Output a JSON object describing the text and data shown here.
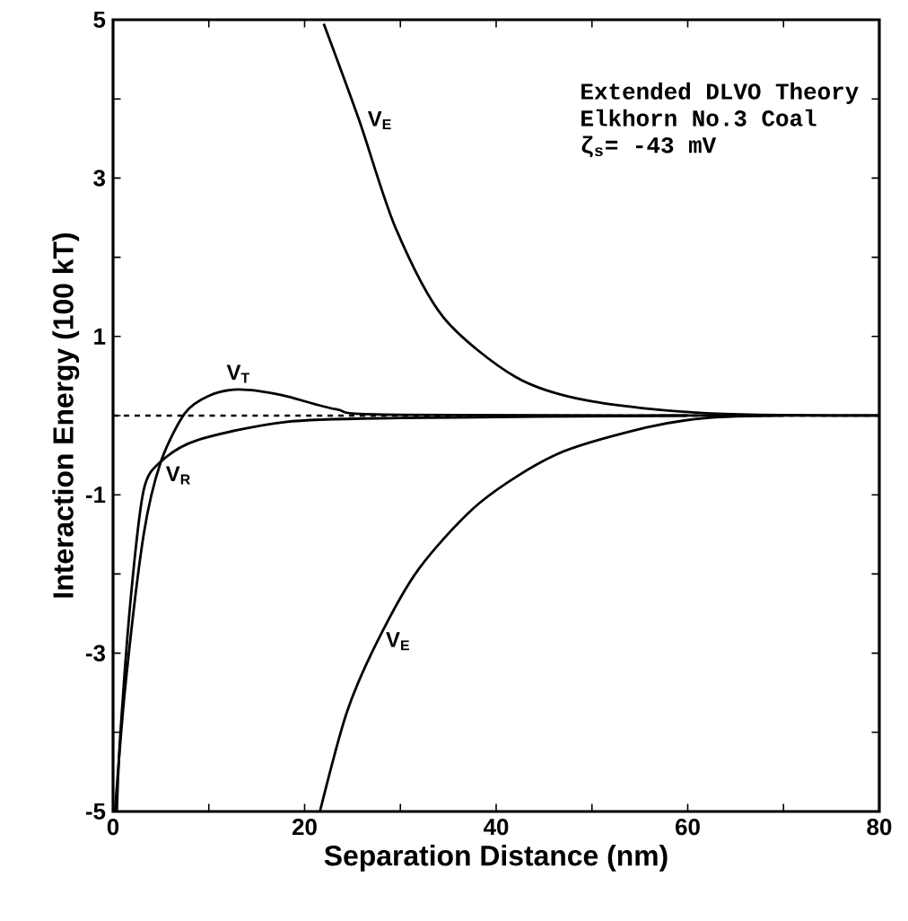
{
  "chart_data": {
    "type": "line",
    "xlabel": "Separation Distance (nm)",
    "ylabel": "Interaction Energy (100 kT)",
    "xlim": [
      0,
      80
    ],
    "ylim": [
      -5,
      5
    ],
    "xticks": [
      0,
      {
        "value": 10,
        "label": null
      },
      20,
      {
        "value": 30,
        "label": null
      },
      40,
      {
        "value": 50,
        "label": null
      },
      60,
      {
        "value": 70,
        "label": null
      },
      80
    ],
    "yticks": [
      -5,
      {
        "value": -4,
        "label": null
      },
      -3,
      {
        "value": -2,
        "label": null
      },
      -1,
      {
        "value": 0,
        "label": null
      },
      1,
      {
        "value": 2,
        "label": null
      },
      3,
      {
        "value": 4,
        "label": null
      },
      5
    ],
    "annotations": [
      "Extended DLVO Theory",
      "Elkhorn No.3 Coal",
      "ζ$_{s}$= -43 mV"
    ],
    "ref_lines": [
      {
        "axis": "y",
        "value": 0,
        "line_style": "dashed"
      }
    ],
    "line_style": "solid",
    "marker": "none",
    "grid": false,
    "series": [
      {
        "name": "V$_{E}$",
        "color": "#000000",
        "x": [
          22,
          25.7,
          29.5,
          34.5,
          42,
          49.5,
          62,
          80
        ],
        "values": [
          4.95,
          3.73,
          2.37,
          1.24,
          0.49,
          0.19,
          0.03,
          0
        ]
      },
      {
        "name": "V$_{T}$",
        "color": "#000000",
        "x": [
          0.2,
          1.3,
          3.2,
          5,
          7.5,
          10,
          13.1,
          17.6,
          23.3,
          30,
          80
        ],
        "values": [
          -5,
          -3.4,
          -1.5,
          -0.58,
          0.03,
          0.25,
          0.33,
          0.26,
          0.08,
          0.01,
          0
        ]
      },
      {
        "name": "V$_{R}$",
        "color": "#000000",
        "x": [
          0.4,
          0.75,
          1.9,
          3.2,
          5,
          8.8,
          18,
          30,
          60
        ],
        "values": [
          -5,
          -4.05,
          -2.24,
          -0.94,
          -0.58,
          -0.31,
          -0.08,
          -0.03,
          0
        ]
      },
      {
        "name": "V$_{E}$",
        "color": "#000000",
        "x": [
          21.6,
          24.4,
          27.6,
          31.9,
          38.3,
          46.3,
          55.7,
          62,
          70
        ],
        "values": [
          -5,
          -3.75,
          -2.85,
          -1.94,
          -1.1,
          -0.49,
          -0.15,
          -0.03,
          0
        ]
      }
    ]
  }
}
